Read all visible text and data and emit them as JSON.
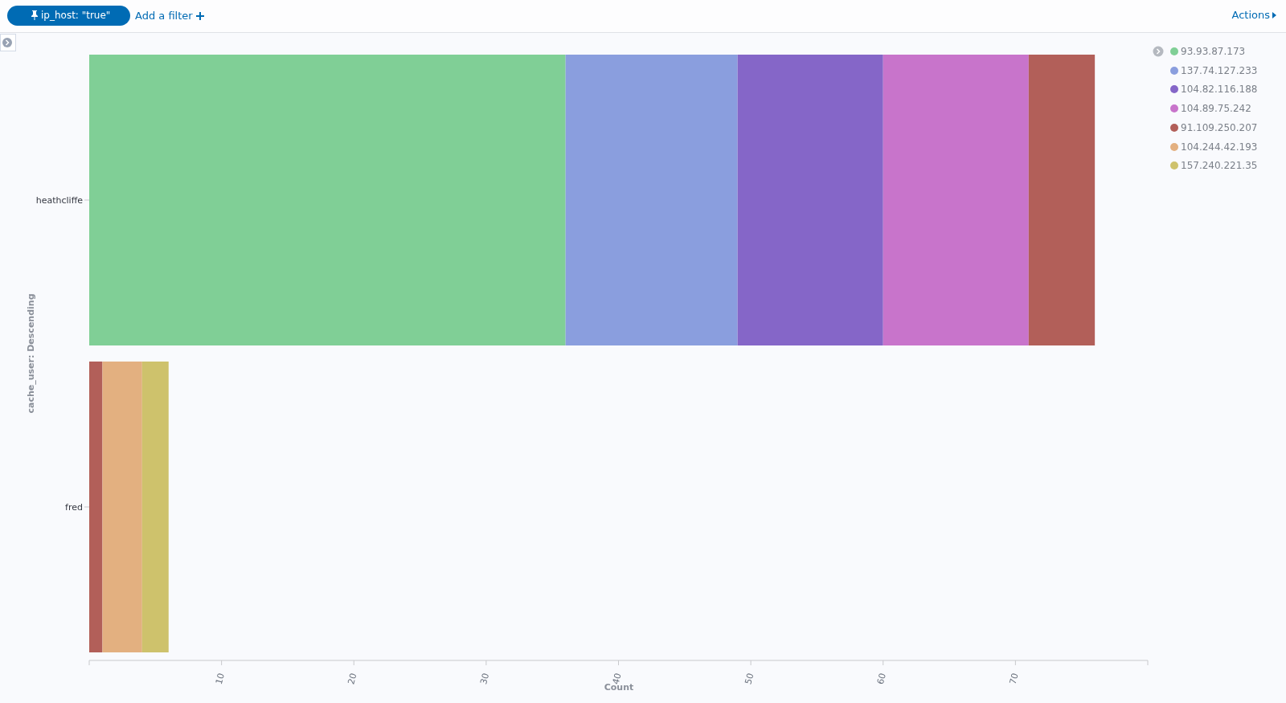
{
  "chart_data": {
    "type": "bar",
    "orientation": "horizontal",
    "stacked": true,
    "xlabel": "Count",
    "ylabel": "cache_user: Descending",
    "categories": [
      "heathcliffe",
      "fred"
    ],
    "series": [
      {
        "name": "93.93.87.173",
        "color": "#80cf96",
        "values": [
          36,
          null
        ]
      },
      {
        "name": "137.74.127.233",
        "color": "#8a9ede",
        "values": [
          13,
          null
        ]
      },
      {
        "name": "104.82.116.188",
        "color": "#8566c8",
        "values": [
          11,
          null
        ]
      },
      {
        "name": "104.89.75.242",
        "color": "#c874cb",
        "values": [
          11,
          null
        ]
      },
      {
        "name": "91.109.250.207",
        "color": "#b25f59",
        "values": [
          5,
          1
        ]
      },
      {
        "name": "104.244.42.193",
        "color": "#e3b080",
        "values": [
          null,
          3
        ]
      },
      {
        "name": "157.240.221.35",
        "color": "#cec26c",
        "values": [
          null,
          2
        ]
      }
    ],
    "xlim": [
      0,
      80
    ],
    "xticks": [
      {
        "value": 0,
        "label": null
      },
      10,
      20,
      30,
      40,
      50,
      60,
      70,
      {
        "value": 80,
        "label": null
      }
    ],
    "legend": "right",
    "annotations": [
      "ip_host: \"true\"",
      "Add a filter",
      "Actions"
    ]
  }
}
